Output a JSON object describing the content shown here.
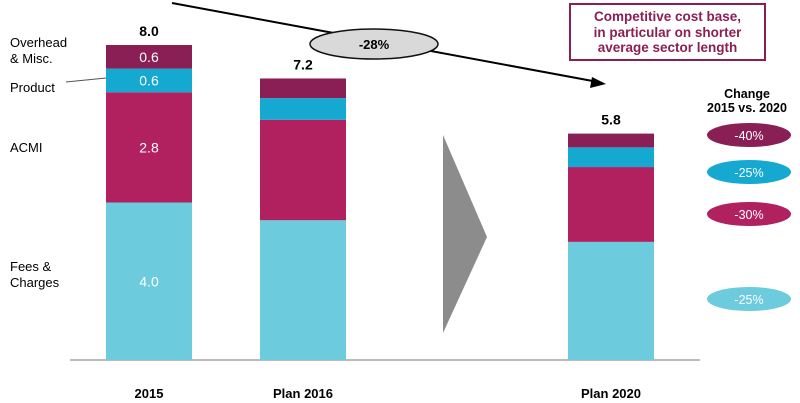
{
  "chart_data": {
    "type": "bar",
    "stacked": true,
    "categories": [
      "2015",
      "Plan 2016",
      "Plan 2020"
    ],
    "series": [
      {
        "name": "Fees & Charges",
        "values": [
          4.0,
          3.55,
          3.0
        ],
        "color": "#6ccbdc"
      },
      {
        "name": "ACMI",
        "values": [
          2.8,
          2.55,
          1.9
        ],
        "color": "#b1215f"
      },
      {
        "name": "Product",
        "values": [
          0.6,
          0.55,
          0.5
        ],
        "color": "#15a8d0"
      },
      {
        "name": "Overhead & Misc.",
        "values": [
          0.6,
          0.5,
          0.35
        ],
        "color": "#8a1f55"
      }
    ],
    "totals": [
      "8.0",
      "7.2",
      "5.8"
    ],
    "segment_labels_2015": [
      "4.0",
      "2.8",
      "0.6",
      "0.6"
    ],
    "segment_label_names": [
      "Fees &\nCharges",
      "ACMI",
      "Product",
      "Overhead\n& Misc."
    ],
    "ylim": [
      0,
      8.2
    ],
    "grid": false,
    "change": {
      "title": "Change\n2015 vs. 2020",
      "values": [
        "-40%",
        "-25%",
        "-30%",
        "-25%"
      ]
    },
    "overall_change": "-28%",
    "callout": [
      "Competitive cost base,",
      "in particular on shorter",
      "average sector length"
    ],
    "colors": {
      "fees": "#6ccbdc",
      "acmi": "#b1215f",
      "product": "#15a8d0",
      "overhead": "#8a1f55",
      "axis": "#777777",
      "arrow": "#8c8c8c",
      "pill_grey": "#d9d9d9"
    }
  }
}
